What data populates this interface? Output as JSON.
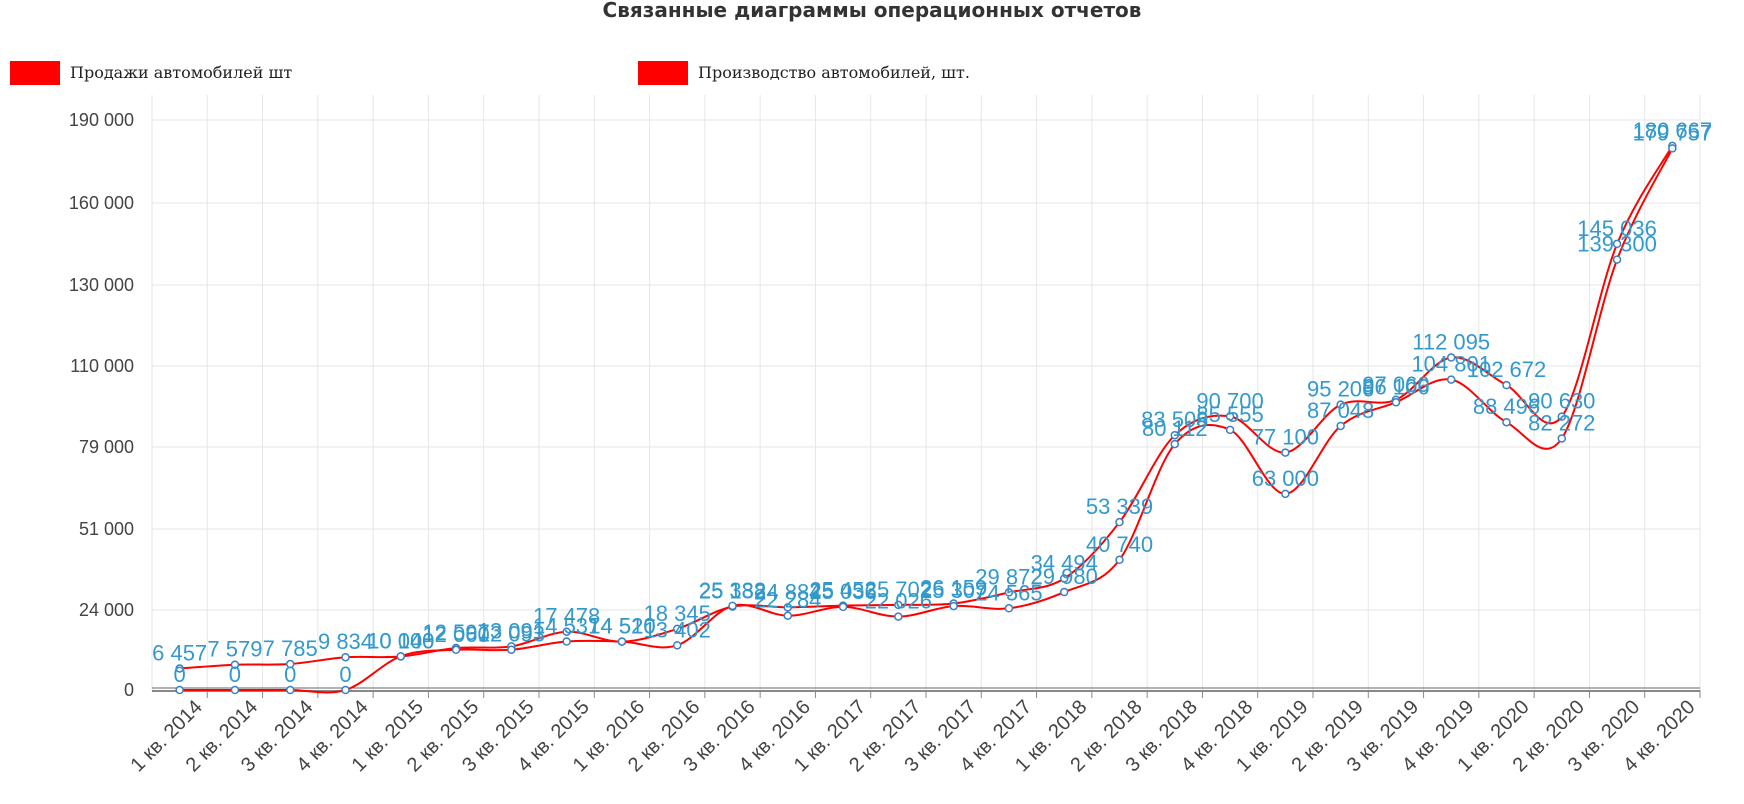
{
  "page": {
    "title": "Связанные диаграммы операционных отчетов"
  },
  "chart_data": {
    "type": "line",
    "title": "Связанные диаграммы операционных отчетов",
    "xlabel": "",
    "ylabel": "",
    "categories": [
      "1 кв. 2014",
      "2 кв. 2014",
      "3 кв. 2014",
      "4 кв. 2014",
      "1 кв. 2015",
      "2 кв. 2015",
      "3 кв. 2015",
      "4 кв. 2015",
      "1 кв. 2016",
      "2 кв. 2016",
      "3 кв. 2016",
      "4 кв. 2016",
      "1 кв. 2017",
      "2 кв. 2017",
      "3 кв. 2017",
      "4 кв. 2017",
      "1 кв. 2018",
      "2 кв. 2018",
      "3 кв. 2018",
      "4 кв. 2018",
      "1 кв. 2019",
      "2 кв. 2019",
      "3 кв. 2019",
      "4 кв. 2019",
      "1 кв. 2020",
      "2 кв. 2020",
      "3 кв. 2020",
      "4 кв. 2020"
    ],
    "y_ticks": [
      {
        "value": 0,
        "label": "0"
      },
      {
        "value": 24000,
        "label": "24 000"
      },
      {
        "value": 51000,
        "label": "51 000"
      },
      {
        "value": 79000,
        "label": "79 000"
      },
      {
        "value": 110000,
        "label": "110 000"
      },
      {
        "value": 130000,
        "label": "130 000"
      },
      {
        "value": 160000,
        "label": "160 000"
      },
      {
        "value": 190000,
        "label": "190 000"
      }
    ],
    "ylim": [
      0,
      190000
    ],
    "grid": true,
    "legend_position": "top",
    "series": [
      {
        "name": "Продажи автомобилей шт",
        "color": "#ff0000",
        "values": [
          6457,
          7579,
          7785,
          9834,
          10040,
          12597,
          13091,
          17478,
          14510,
          18345,
          25132,
          24884,
          25453,
          25702,
          26159,
          29872,
          34494,
          53339,
          83508,
          90700,
          77100,
          95206,
          97060,
          112095,
          102672,
          90630,
          145036,
          180667
        ],
        "labels": [
          "6 457",
          "7 579",
          "7 785",
          "9 834",
          "10 040",
          "12 597",
          "13 091",
          "17 478",
          "14 510",
          "18 345",
          "25 132",
          "24 884",
          "25 453",
          "25 702",
          "26 159",
          "29 872",
          "34 494",
          "53 339",
          "83 508",
          "90 700",
          "77 100",
          "95 206",
          "97 060",
          "112 095",
          "102 672",
          "90 630",
          "145 036",
          "180 667"
        ]
      },
      {
        "name": "Производство автомобилей, шт.",
        "color": "#ff0000",
        "values": [
          0,
          0,
          0,
          0,
          10100,
          12060,
          12093,
          14537,
          14520,
          13402,
          25388,
          22284,
          25036,
          22026,
          25307,
          24565,
          29980,
          40740,
          80112,
          85555,
          63000,
          87048,
          96106,
          104801,
          88496,
          82272,
          139300,
          179757
        ],
        "labels": [
          "0",
          "0",
          "0",
          "0",
          "10 100",
          "12 060",
          "12 093",
          "14 537",
          "14 520",
          "13 402",
          "25 388",
          "22 284",
          "25 036",
          "22 026",
          "25 307",
          "24 565",
          "29 980",
          "40 740",
          "80 112",
          "85 555",
          "63 000",
          "87 048",
          "96 106",
          "104 801",
          "88 496",
          "82 272",
          "139 300",
          "179 757"
        ]
      }
    ]
  }
}
